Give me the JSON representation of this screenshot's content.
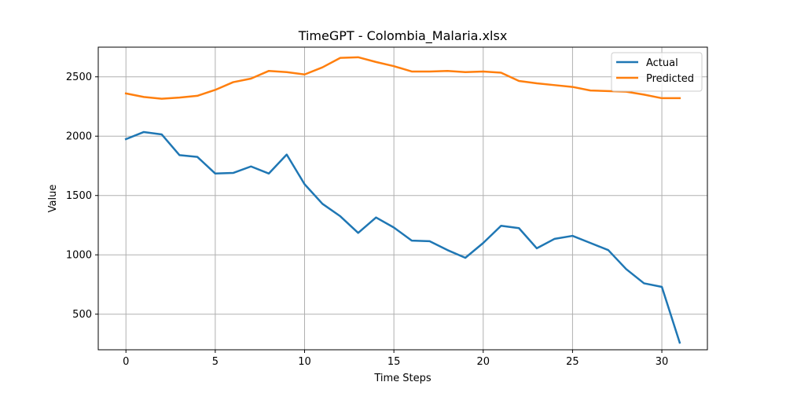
{
  "chart_data": {
    "type": "line",
    "title": "TimeGPT - Colombia_Malaria.xlsx",
    "xlabel": "Time Steps",
    "ylabel": "Value",
    "xlim": [
      -1.55,
      32.55
    ],
    "ylim": [
      200,
      2750
    ],
    "x_ticks": [
      0,
      5,
      10,
      15,
      20,
      25,
      30
    ],
    "y_ticks": [
      500,
      1000,
      1500,
      2000,
      2500
    ],
    "grid": true,
    "legend_position": "top-right",
    "x": [
      0,
      1,
      2,
      3,
      4,
      5,
      6,
      7,
      8,
      9,
      10,
      11,
      12,
      13,
      14,
      15,
      16,
      17,
      18,
      19,
      20,
      21,
      22,
      23,
      24,
      25,
      26,
      27,
      28,
      29,
      30,
      31
    ],
    "series": [
      {
        "name": "Actual",
        "color": "#1f77b4",
        "values": [
          1975,
          2035,
          2015,
          1840,
          1825,
          1685,
          1690,
          1745,
          1685,
          1845,
          1595,
          1430,
          1325,
          1185,
          1315,
          1230,
          1120,
          1115,
          1040,
          975,
          1100,
          1245,
          1225,
          1055,
          1135,
          1160,
          1100,
          1040,
          880,
          760,
          730,
          260
        ]
      },
      {
        "name": "Predicted",
        "color": "#ff7f0e",
        "values": [
          2360,
          2330,
          2315,
          2325,
          2340,
          2390,
          2455,
          2485,
          2550,
          2540,
          2520,
          2580,
          2660,
          2665,
          2625,
          2590,
          2545,
          2545,
          2550,
          2540,
          2545,
          2535,
          2465,
          2445,
          2430,
          2415,
          2385,
          2380,
          2375,
          2350,
          2320,
          2320
        ]
      }
    ]
  }
}
